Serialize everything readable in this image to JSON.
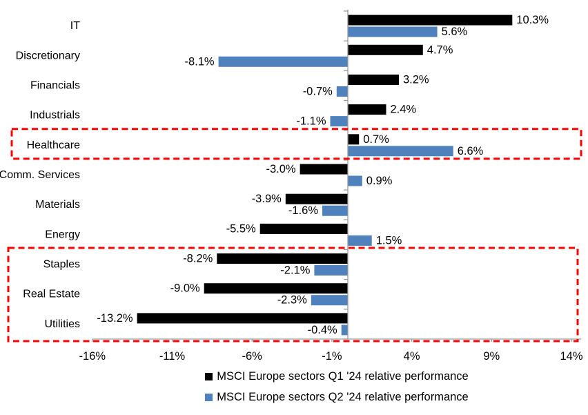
{
  "chart_data": {
    "type": "bar",
    "orientation": "horizontal",
    "title": "",
    "categories": [
      "IT",
      "Discretionary",
      "Financials",
      "Industrials",
      "Healthcare",
      "Comm. Services",
      "Materials",
      "Energy",
      "Staples",
      "Real Estate",
      "Utilities"
    ],
    "series": [
      {
        "name": "MSCI Europe sectors Q1 '24 relative performance",
        "color": "#000000",
        "values": [
          10.3,
          4.7,
          3.2,
          2.4,
          0.7,
          -3.0,
          -3.9,
          -5.5,
          -8.2,
          -9.0,
          -13.2
        ],
        "labels": [
          "10.3%",
          "4.7%",
          "3.2%",
          "2.4%",
          "0.7%",
          "-3.0%",
          "-3.9%",
          "-5.5%",
          "-8.2%",
          "-9.0%",
          "-13.2%"
        ]
      },
      {
        "name": "MSCI Europe sectors Q2 '24 relative performance",
        "color": "#4F81BD",
        "values": [
          5.6,
          -8.1,
          -0.7,
          -1.1,
          6.6,
          0.9,
          -1.6,
          1.5,
          -2.1,
          -2.3,
          -0.4
        ],
        "labels": [
          "5.6%",
          "-8.1%",
          "-0.7%",
          "-1.1%",
          "6.6%",
          "0.9%",
          "-1.6%",
          "1.5%",
          "-2.1%",
          "-2.3%",
          "-0.4%"
        ]
      }
    ],
    "x_axis": {
      "min": -16,
      "max": 14.6,
      "ticks": [
        -16,
        -11,
        -6,
        -1,
        4,
        9,
        14
      ],
      "tick_labels": [
        "-16%",
        "-11%",
        "-6%",
        "-1%",
        "4%",
        "9%",
        "14%"
      ]
    },
    "grid": false,
    "legend_position": "bottom",
    "highlights": [
      {
        "name": "healthcare-highlight",
        "first_category": "Healthcare",
        "last_category": "Healthcare",
        "color": "#FF0000"
      },
      {
        "name": "staples-realestate-utilities-highlight",
        "first_category": "Staples",
        "last_category": "Utilities",
        "color": "#FF0000"
      }
    ]
  },
  "colors": {
    "q1_bar": "#000000",
    "q2_bar": "#4F81BD",
    "highlight_box": "#FF0000",
    "axis_line": "#9a9a9a",
    "background": "#FFFFFF",
    "text": "#000000"
  }
}
